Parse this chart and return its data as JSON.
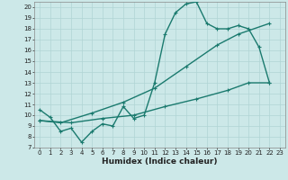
{
  "title": "",
  "xlabel": "Humidex (Indice chaleur)",
  "bg_color": "#cce8e8",
  "line_color": "#1a7a6e",
  "xlim": [
    -0.5,
    23.5
  ],
  "ylim": [
    7,
    20.5
  ],
  "xticks": [
    0,
    1,
    2,
    3,
    4,
    5,
    6,
    7,
    8,
    9,
    10,
    11,
    12,
    13,
    14,
    15,
    16,
    17,
    18,
    19,
    20,
    21,
    22,
    23
  ],
  "yticks": [
    7,
    8,
    9,
    10,
    11,
    12,
    13,
    14,
    15,
    16,
    17,
    18,
    19,
    20
  ],
  "line1_x": [
    0,
    1,
    2,
    3,
    4,
    5,
    6,
    7,
    8,
    9,
    10,
    11,
    12,
    13,
    14,
    15,
    16,
    17,
    18,
    19,
    20,
    21,
    22
  ],
  "line1_y": [
    10.5,
    9.8,
    8.5,
    8.8,
    7.5,
    8.5,
    9.2,
    9.0,
    10.8,
    9.7,
    10.0,
    13.0,
    17.5,
    19.5,
    20.3,
    20.5,
    18.5,
    18.0,
    18.0,
    18.3,
    18.0,
    16.3,
    13.0
  ],
  "line2_x": [
    0,
    2,
    5,
    8,
    11,
    14,
    17,
    19,
    22
  ],
  "line2_y": [
    9.5,
    9.3,
    10.2,
    11.2,
    12.5,
    14.5,
    16.5,
    17.5,
    18.5
  ],
  "line3_x": [
    0,
    3,
    6,
    9,
    12,
    15,
    18,
    20,
    22
  ],
  "line3_y": [
    9.5,
    9.3,
    9.7,
    10.0,
    10.8,
    11.5,
    12.3,
    13.0,
    13.0
  ],
  "grid_color": "#b0d4d4",
  "marker_size": 3.0,
  "linewidth": 1.0,
  "tick_fontsize": 5.0,
  "xlabel_fontsize": 6.5
}
